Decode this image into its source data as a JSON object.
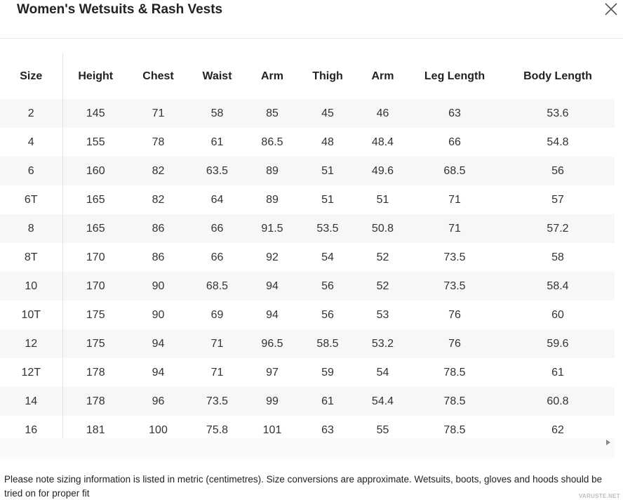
{
  "title": "Women's Wetsuits & Rash Vests",
  "close_icon": "close-icon",
  "scroll_icon": "chevron-right-icon",
  "table": {
    "headers": [
      "Size",
      "Height",
      "Chest",
      "Waist",
      "Arm",
      "Thigh",
      "Arm",
      "Leg Length",
      "Body Length"
    ],
    "rows": [
      [
        "2",
        "145",
        "71",
        "58",
        "85",
        "45",
        "46",
        "63",
        "53.6"
      ],
      [
        "4",
        "155",
        "78",
        "61",
        "86.5",
        "48",
        "48.4",
        "66",
        "54.8"
      ],
      [
        "6",
        "160",
        "82",
        "63.5",
        "89",
        "51",
        "49.6",
        "68.5",
        "56"
      ],
      [
        "6T",
        "165",
        "82",
        "64",
        "89",
        "51",
        "51",
        "71",
        "57"
      ],
      [
        "8",
        "165",
        "86",
        "66",
        "91.5",
        "53.5",
        "50.8",
        "71",
        "57.2"
      ],
      [
        "8T",
        "170",
        "86",
        "66",
        "92",
        "54",
        "52",
        "73.5",
        "58"
      ],
      [
        "10",
        "170",
        "90",
        "68.5",
        "94",
        "56",
        "52",
        "73.5",
        "58.4"
      ],
      [
        "10T",
        "175",
        "90",
        "69",
        "94",
        "56",
        "53",
        "76",
        "60"
      ],
      [
        "12",
        "175",
        "94",
        "71",
        "96.5",
        "58.5",
        "53.2",
        "76",
        "59.6"
      ],
      [
        "12T",
        "178",
        "94",
        "71",
        "97",
        "59",
        "54",
        "78.5",
        "61"
      ],
      [
        "14",
        "178",
        "96",
        "73.5",
        "99",
        "61",
        "54.4",
        "78.5",
        "60.8"
      ],
      [
        "16",
        "181",
        "100",
        "75.8",
        "101",
        "63",
        "55",
        "78.5",
        "62"
      ]
    ]
  },
  "note": "Please note sizing information is listed in metric (centimetres). Size conversions are approximate. Wetsuits, boots, gloves and hoods should be tried on for proper fit",
  "watermark": "VARUSTE.NET"
}
